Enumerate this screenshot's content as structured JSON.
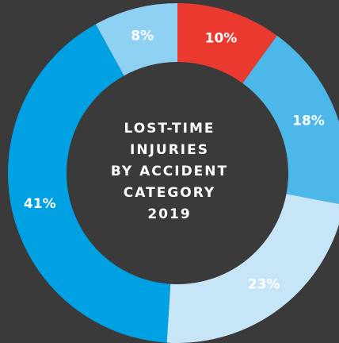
{
  "chart_data": {
    "type": "donut",
    "title": [
      "LOST-TIME",
      "INJURIES",
      "BY ACCIDENT",
      "CATEGORY",
      "2019"
    ],
    "values": [
      10,
      18,
      23,
      41,
      8
    ],
    "value_labels": [
      "10%",
      "18%",
      "23%",
      "41%",
      "8%"
    ],
    "colors": [
      "#ea3a2f",
      "#4cb8ea",
      "#c6e6f7",
      "#00a1e3",
      "#8fd1f3"
    ]
  }
}
